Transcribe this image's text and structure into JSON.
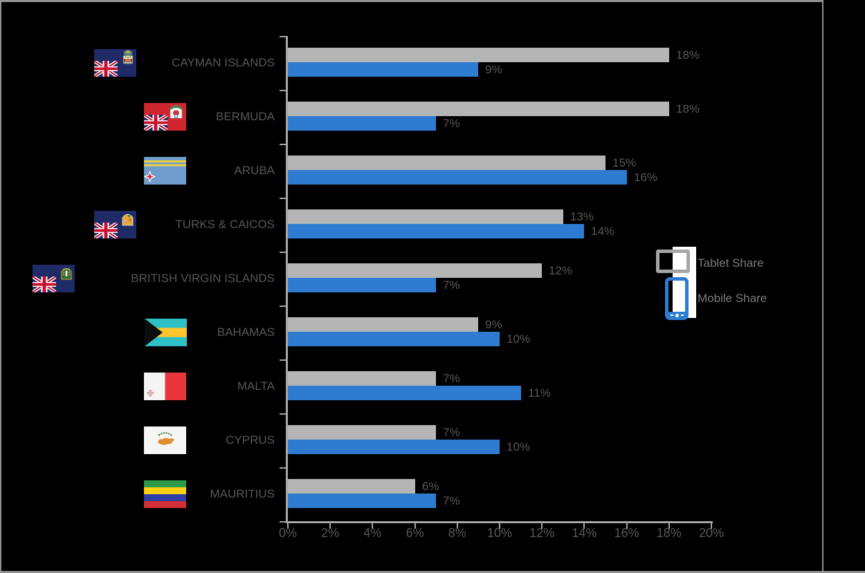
{
  "chart_data": {
    "type": "bar",
    "orientation": "horizontal",
    "categories": [
      "CAYMAN ISLANDS",
      "BERMUDA",
      "ARUBA",
      "TURKS & CAICOS",
      "BRITISH VIRGIN ISLANDS",
      "BAHAMAS",
      "MALTA",
      "CYPRUS",
      "MAURITIUS"
    ],
    "series": [
      {
        "name": "Tablet Share",
        "color": "#b5b5b5",
        "values": [
          18,
          18,
          15,
          13,
          12,
          9,
          7,
          7,
          6
        ]
      },
      {
        "name": "Mobile Share",
        "color": "#2e7cd2",
        "values": [
          9,
          7,
          16,
          14,
          7,
          10,
          11,
          10,
          7
        ]
      }
    ],
    "value_suffix": "%",
    "xlim": [
      0,
      20
    ],
    "x_tick_labels": [
      "0%",
      "2%",
      "4%",
      "6%",
      "8%",
      "10%",
      "12%",
      "14%",
      "16%",
      "18%",
      "20%"
    ],
    "grid": false,
    "legend_position": "right",
    "background": "#000000"
  },
  "flag_ids": [
    "cayman-islands",
    "bermuda",
    "aruba",
    "turks-and-caicos",
    "british-virgin-islands",
    "bahamas",
    "malta",
    "cyprus",
    "mauritius"
  ],
  "legend": {
    "items": [
      {
        "icon": "tablet-icon",
        "label": "Tablet Share"
      },
      {
        "icon": "smartphone-icon",
        "label": "Mobile Share"
      }
    ]
  },
  "colors": {
    "background": "#000000",
    "frame_border": "#929292",
    "axis": "#a6a6a6",
    "label_text": "#575757",
    "legend_text": "#7b7b7b",
    "tablet_bar": "#b5b5b5",
    "mobile_bar": "#2e7cd2"
  }
}
